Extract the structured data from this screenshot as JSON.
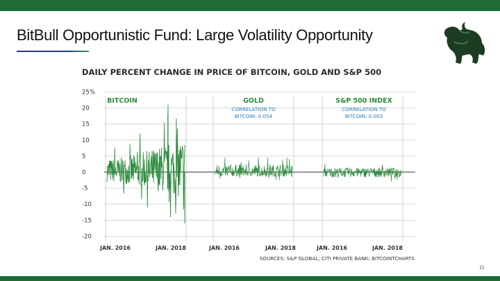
{
  "slide": {
    "title": "BitBull Opportunistic Fund: Large Volatility Opportunity",
    "page_number": "11",
    "logo_icon": "bull-icon",
    "colors": {
      "band": "#1e6b35",
      "series": "#2e8b3e",
      "correlation_text": "#2a7ab8"
    }
  },
  "chart_data": {
    "type": "line",
    "title": "DAILY PERCENT CHANGE IN PRICE OF BITCOIN, GOLD AND S&P 500",
    "ylabel": "",
    "xlabel": "",
    "ylim": [
      -22,
      25
    ],
    "yticks": [
      "25%",
      "20",
      "15",
      "10",
      "5",
      "0",
      "-5",
      "-10",
      "-15",
      "-20"
    ],
    "grid": true,
    "source": "SOURCES: S&P GLOBAL; CITI PRIVATE BANK; BITCOINTCHARTS",
    "panels": [
      {
        "name": "BITCOIN",
        "correlation_label": "",
        "correlation": "",
        "x_ticks": [
          "JAN. 2016",
          "JAN. 2018"
        ],
        "approx_range": [
          -16,
          21
        ]
      },
      {
        "name": "GOLD",
        "correlation_label": "CORRELATION TO",
        "correlation": "BITCOIN: 0.054",
        "x_ticks": [
          "JAN. 2016",
          "JAN. 2018"
        ],
        "approx_range": [
          -2.5,
          4.5
        ]
      },
      {
        "name": "S&P 500 INDEX",
        "correlation_label": "CORRELATION TO",
        "correlation": "BITCOIN: 0.003",
        "x_ticks": [
          "JAN. 2016",
          "JAN. 2018"
        ],
        "approx_range": [
          -3,
          2.5
        ]
      }
    ]
  }
}
